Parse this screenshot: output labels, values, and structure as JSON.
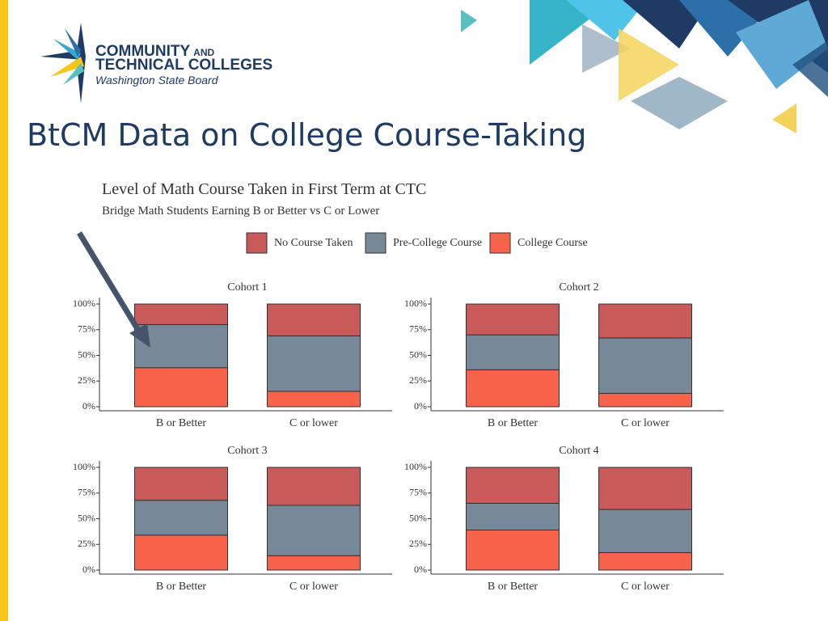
{
  "logo": {
    "line1": "COMMUNITY",
    "line1_small": "AND",
    "line2": "TECHNICAL COLLEGES",
    "line3": "Washington State Board"
  },
  "slide_title": "BtCM Data on College Course-Taking",
  "figure": {
    "title": "Level of Math Course Taken in First Term at CTC",
    "subtitle": "Bridge Math Students Earning B or Better vs C or Lower"
  },
  "chart_data": [
    {
      "type": "stacked_bar",
      "title": "Cohort 1",
      "categories": [
        "B or Better",
        "C or lower"
      ],
      "series": [
        {
          "name": "No Course Taken",
          "color": "#c85a5a",
          "values": [
            20,
            31
          ]
        },
        {
          "name": "Pre-College Course",
          "color": "#778899",
          "values": [
            42,
            54
          ]
        },
        {
          "name": "College Course",
          "color": "#f7634a",
          "values": [
            38,
            15
          ]
        }
      ],
      "ylim": [
        0,
        100
      ],
      "yticks": [
        {
          "value": 0,
          "label": "0%"
        },
        {
          "value": 25,
          "label": "25%"
        },
        {
          "value": 50,
          "label": "50%"
        },
        {
          "value": 75,
          "label": "75%"
        },
        {
          "value": 100,
          "label": "100%"
        }
      ]
    },
    {
      "type": "stacked_bar",
      "title": "Cohort 2",
      "categories": [
        "B or Better",
        "C or lower"
      ],
      "series": [
        {
          "name": "No Course Taken",
          "color": "#c85a5a",
          "values": [
            30,
            33
          ]
        },
        {
          "name": "Pre-College Course",
          "color": "#778899",
          "values": [
            34,
            54
          ]
        },
        {
          "name": "College Course",
          "color": "#f7634a",
          "values": [
            36,
            13
          ]
        }
      ],
      "ylim": [
        0,
        100
      ],
      "yticks": [
        {
          "value": 0,
          "label": "0%"
        },
        {
          "value": 25,
          "label": "25%"
        },
        {
          "value": 50,
          "label": "50%"
        },
        {
          "value": 75,
          "label": "75%"
        },
        {
          "value": 100,
          "label": "100%"
        }
      ]
    },
    {
      "type": "stacked_bar",
      "title": "Cohort 3",
      "categories": [
        "B or Better",
        "C or lower"
      ],
      "series": [
        {
          "name": "No Course Taken",
          "color": "#c85a5a",
          "values": [
            32,
            37
          ]
        },
        {
          "name": "Pre-College Course",
          "color": "#778899",
          "values": [
            34,
            49
          ]
        },
        {
          "name": "College Course",
          "color": "#f7634a",
          "values": [
            34,
            14
          ]
        }
      ],
      "ylim": [
        0,
        100
      ],
      "yticks": [
        {
          "value": 0,
          "label": "0%"
        },
        {
          "value": 25,
          "label": "25%"
        },
        {
          "value": 50,
          "label": "50%"
        },
        {
          "value": 75,
          "label": "75%"
        },
        {
          "value": 100,
          "label": "100%"
        }
      ]
    },
    {
      "type": "stacked_bar",
      "title": "Cohort 4",
      "categories": [
        "B or Better",
        "C or lower"
      ],
      "series": [
        {
          "name": "No Course Taken",
          "color": "#c85a5a",
          "values": [
            35,
            41
          ]
        },
        {
          "name": "Pre-College Course",
          "color": "#778899",
          "values": [
            26,
            42
          ]
        },
        {
          "name": "College Course",
          "color": "#f7634a",
          "values": [
            39,
            17
          ]
        }
      ],
      "ylim": [
        0,
        100
      ],
      "yticks": [
        {
          "value": 0,
          "label": "0%"
        },
        {
          "value": 25,
          "label": "25%"
        },
        {
          "value": 50,
          "label": "50%"
        },
        {
          "value": 75,
          "label": "75%"
        },
        {
          "value": 100,
          "label": "100%"
        }
      ]
    }
  ]
}
